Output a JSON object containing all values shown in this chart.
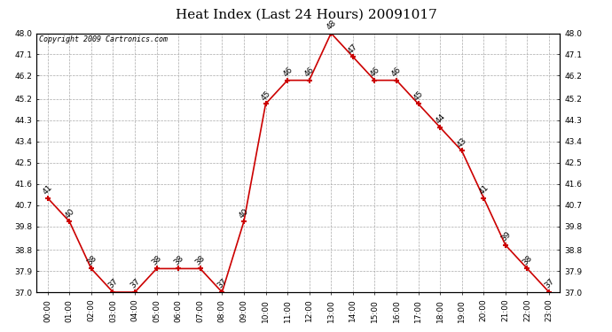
{
  "title": "Heat Index (Last 24 Hours) 20091017",
  "copyright": "Copyright 2009 Cartronics.com",
  "hours": [
    "00:00",
    "01:00",
    "02:00",
    "03:00",
    "04:00",
    "05:00",
    "06:00",
    "07:00",
    "08:00",
    "09:00",
    "10:00",
    "11:00",
    "12:00",
    "13:00",
    "14:00",
    "15:00",
    "16:00",
    "17:00",
    "18:00",
    "19:00",
    "20:00",
    "21:00",
    "22:00",
    "23:00"
  ],
  "values": [
    41,
    40,
    38,
    37,
    37,
    38,
    38,
    38,
    37,
    40,
    45,
    46,
    46,
    48,
    47,
    46,
    46,
    45,
    44,
    43,
    41,
    39,
    38,
    37
  ],
  "ylim_min": 37.0,
  "ylim_max": 48.0,
  "yticks": [
    37.0,
    37.9,
    38.8,
    39.8,
    40.7,
    41.6,
    42.5,
    43.4,
    44.3,
    45.2,
    46.2,
    47.1,
    48.0
  ],
  "line_color": "#cc0000",
  "marker_color": "#cc0000",
  "bg_color": "#ffffff",
  "grid_color": "#aaaaaa",
  "title_fontsize": 11,
  "copyright_fontsize": 6,
  "label_fontsize": 6.5,
  "annot_fontsize": 6.5
}
